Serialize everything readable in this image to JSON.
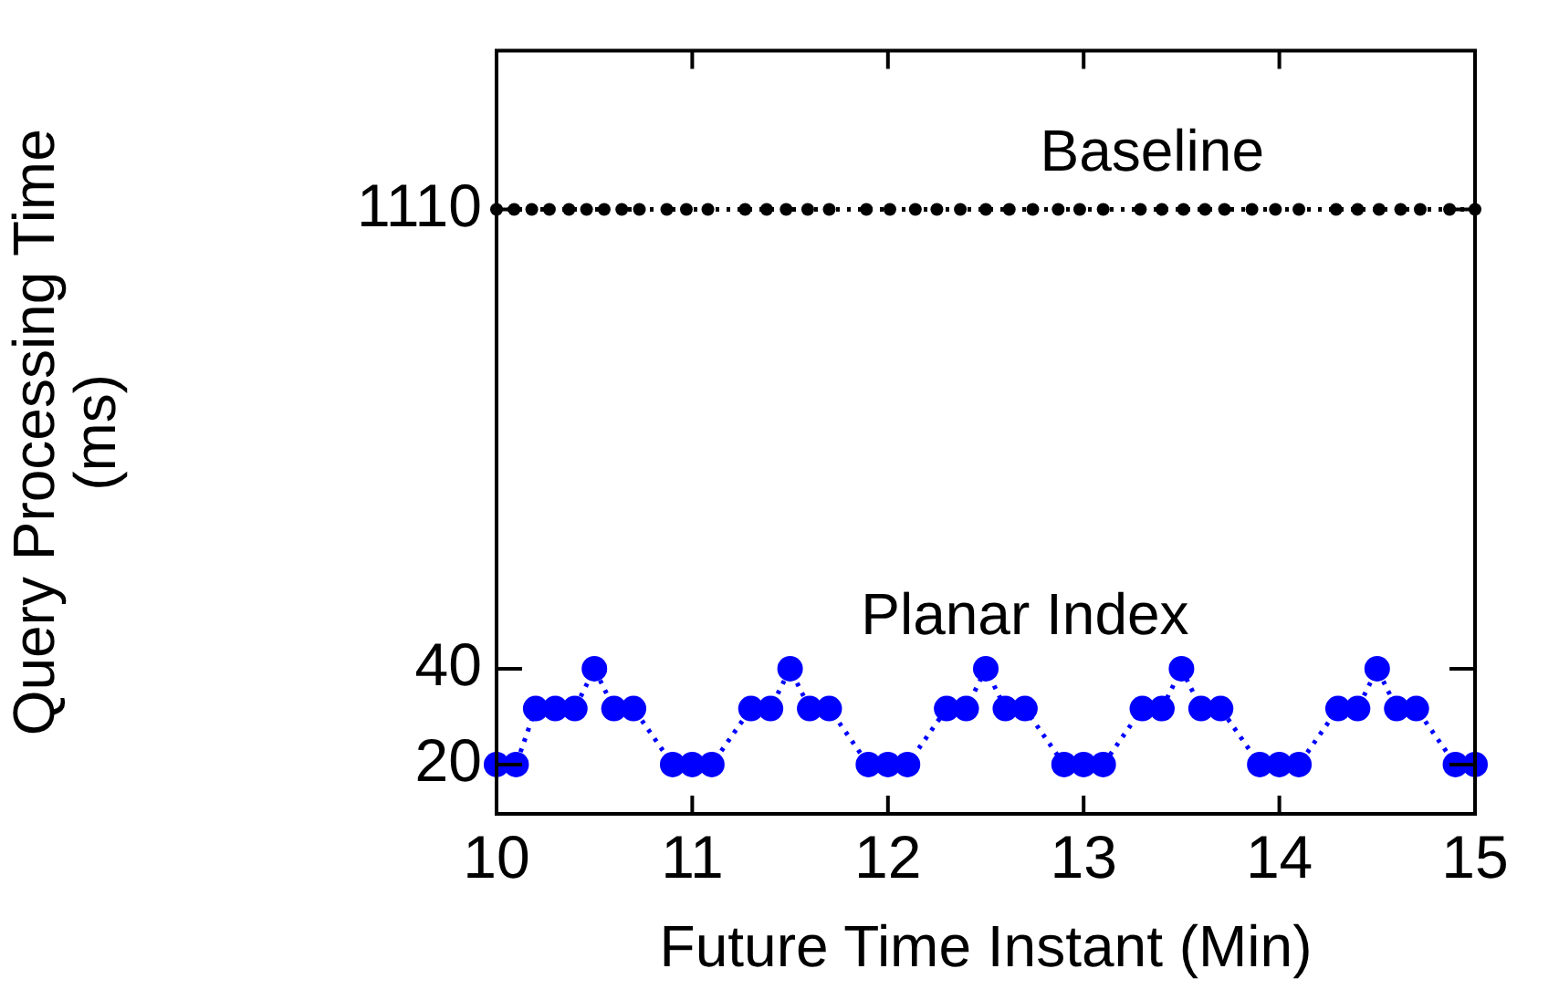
{
  "chart_data": {
    "type": "line",
    "xlabel": "Future Time Instant (Min)",
    "ylabel": "Query Processing Time\n(ms)",
    "log": "y",
    "grid": false,
    "marker": "circle",
    "line_style": "dotted",
    "xlim": [
      10,
      15
    ],
    "xticks": [
      10,
      11,
      12,
      13,
      14,
      15
    ],
    "ylim": [
      14,
      3500
    ],
    "yticks": [
      20,
      40,
      1110
    ],
    "series": [
      {
        "name": "Baseline",
        "color": "#000000",
        "x": [
          10.0,
          10.09,
          10.18,
          10.27,
          10.37,
          10.46,
          10.55,
          10.64,
          10.73,
          10.87,
          10.97,
          11.08,
          11.27,
          11.38,
          11.48,
          11.59,
          11.7,
          11.89,
          12.01,
          12.14,
          12.25,
          12.37,
          12.5,
          12.62,
          12.74,
          12.87,
          12.98,
          13.1,
          13.29,
          13.4,
          13.51,
          13.62,
          13.72,
          13.86,
          13.98,
          14.1,
          14.29,
          14.4,
          14.51,
          14.62,
          14.72,
          14.87,
          15.0
        ],
        "values": [
          1110,
          1110,
          1110,
          1110,
          1110,
          1110,
          1110,
          1110,
          1110,
          1110,
          1110,
          1110,
          1110,
          1110,
          1110,
          1110,
          1110,
          1110,
          1110,
          1110,
          1110,
          1110,
          1110,
          1110,
          1110,
          1110,
          1110,
          1110,
          1110,
          1110,
          1110,
          1110,
          1110,
          1110,
          1110,
          1110,
          1110,
          1110,
          1110,
          1110,
          1110,
          1110,
          1110
        ]
      },
      {
        "name": "Planar Index",
        "color": "#0000ff",
        "x": [
          10.0,
          10.1,
          10.2,
          10.3,
          10.4,
          10.5,
          10.6,
          10.7,
          10.9,
          11.0,
          11.1,
          11.3,
          11.4,
          11.5,
          11.6,
          11.7,
          11.9,
          12.0,
          12.1,
          12.3,
          12.4,
          12.5,
          12.6,
          12.7,
          12.9,
          13.0,
          13.1,
          13.3,
          13.4,
          13.5,
          13.6,
          13.7,
          13.9,
          14.0,
          14.1,
          14.3,
          14.4,
          14.5,
          14.6,
          14.7,
          14.9,
          15.0
        ],
        "values": [
          20,
          20,
          30,
          30,
          30,
          40,
          30,
          30,
          20,
          20,
          20,
          30,
          30,
          40,
          30,
          30,
          20,
          20,
          20,
          30,
          30,
          40,
          30,
          30,
          20,
          20,
          20,
          30,
          30,
          40,
          30,
          30,
          20,
          20,
          20,
          30,
          30,
          40,
          30,
          30,
          20,
          20
        ]
      }
    ]
  }
}
